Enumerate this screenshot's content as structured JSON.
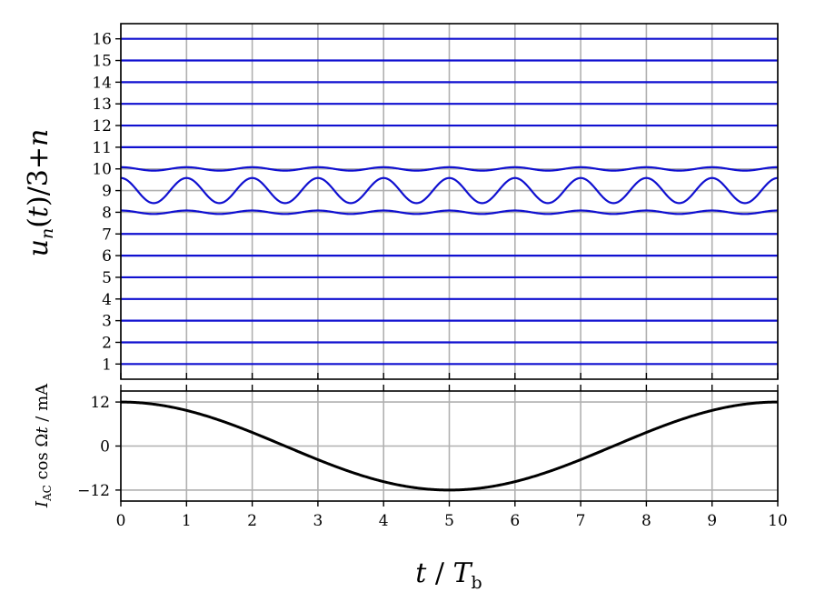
{
  "chart_data": [
    {
      "type": "line",
      "panel": "top",
      "ylabel": "u_n(t)/3+n",
      "xlim": [
        0,
        10
      ],
      "ylim": [
        0.3,
        16.7
      ],
      "x_ticks": [
        "0",
        "1",
        "2",
        "3",
        "4",
        "5",
        "6",
        "7",
        "8",
        "9",
        "10"
      ],
      "y_tick_values": [
        1,
        2,
        3,
        4,
        5,
        6,
        7,
        8,
        9,
        10,
        11,
        12,
        13,
        14,
        15,
        16
      ],
      "y_ticks": [
        "1",
        "2",
        "3",
        "4",
        "5",
        "6",
        "7",
        "8",
        "9",
        "10",
        "11",
        "12",
        "13",
        "14",
        "15",
        "16"
      ],
      "grid": true,
      "line_color": "#1010d0",
      "oscillators": {
        "n": [
          1,
          2,
          3,
          4,
          5,
          6,
          7,
          8,
          9,
          10,
          11,
          12,
          13,
          14,
          15,
          16
        ],
        "amplitude": [
          0,
          0,
          0,
          0,
          0,
          0,
          0,
          0.08,
          0.58,
          0.08,
          0,
          0,
          0,
          0,
          0,
          0
        ],
        "period": 1,
        "phase_at_t0": "maximum"
      }
    },
    {
      "type": "line",
      "panel": "bottom",
      "ylabel": "I_AC cos Ωt / mA",
      "xlabel": "t / T_b",
      "xlim": [
        0,
        10
      ],
      "ylim": [
        -15,
        15
      ],
      "x_ticks": [
        "0",
        "1",
        "2",
        "3",
        "4",
        "5",
        "6",
        "7",
        "8",
        "9",
        "10"
      ],
      "y_tick_values": [
        12,
        0,
        -12
      ],
      "y_ticks": [
        "12",
        "0",
        "-12"
      ],
      "grid": true,
      "line_color": "#000000",
      "drive": {
        "amplitude": 12,
        "period": 10,
        "unit": "mA"
      }
    }
  ]
}
